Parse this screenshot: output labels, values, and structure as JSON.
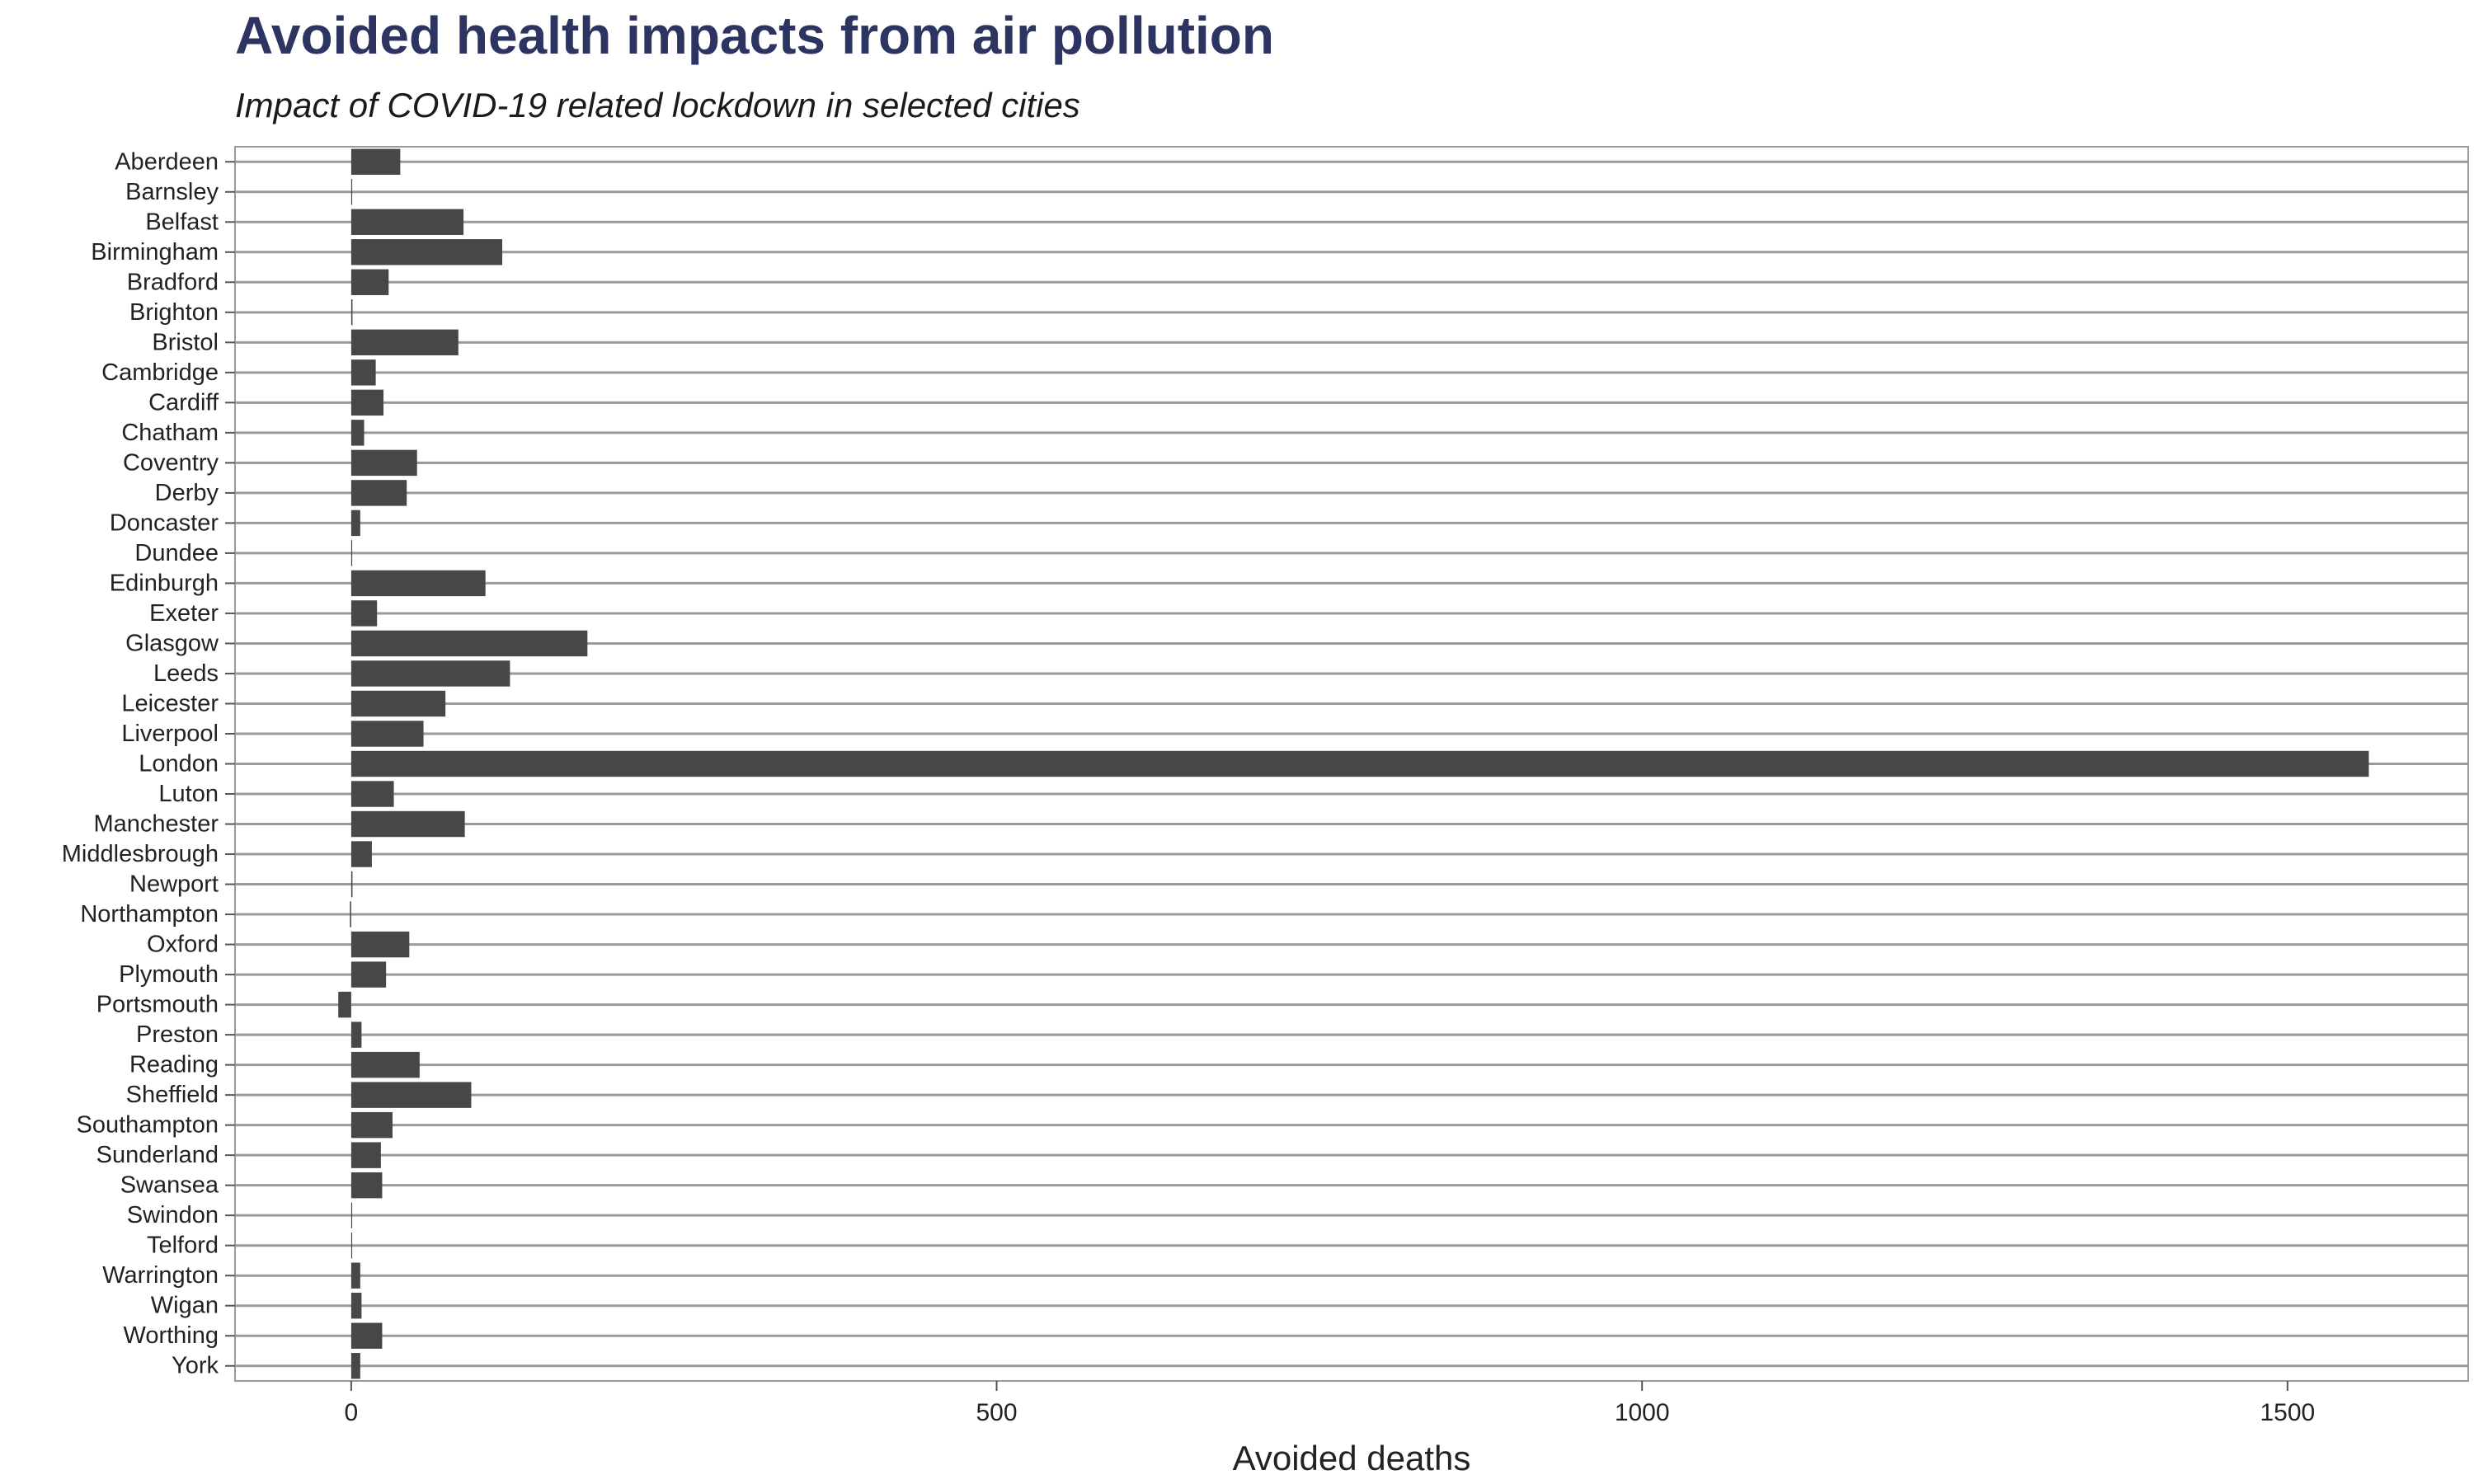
{
  "chart_data": {
    "type": "bar",
    "orientation": "horizontal",
    "title": "Avoided health impacts from air pollution",
    "subtitle": "Impact of COVID-19 related lockdown in selected cities",
    "xlabel": "Avoided deaths",
    "ylabel": "",
    "xlim": [
      -90,
      1640
    ],
    "xticks": [
      0,
      500,
      1000,
      1500
    ],
    "bar_color": "#474747",
    "title_color": "#2d3461",
    "grid": "horizontal lines per category",
    "categories": [
      "Aberdeen",
      "Barnsley",
      "Belfast",
      "Birmingham",
      "Bradford",
      "Brighton",
      "Bristol",
      "Cambridge",
      "Cardiff",
      "Chatham",
      "Coventry",
      "Derby",
      "Doncaster",
      "Dundee",
      "Edinburgh",
      "Exeter",
      "Glasgow",
      "Leeds",
      "Leicester",
      "Liverpool",
      "London",
      "Luton",
      "Manchester",
      "Middlesbrough",
      "Newport",
      "Northampton",
      "Oxford",
      "Plymouth",
      "Portsmouth",
      "Preston",
      "Reading",
      "Sheffield",
      "Southampton",
      "Sunderland",
      "Swansea",
      "Swindon",
      "Telford",
      "Warrington",
      "Wigan",
      "Worthing",
      "York"
    ],
    "values": [
      38,
      0,
      87,
      117,
      29,
      1,
      83,
      19,
      25,
      10,
      51,
      43,
      7,
      0,
      104,
      20,
      183,
      123,
      73,
      56,
      1563,
      33,
      88,
      16,
      1,
      -1,
      45,
      27,
      -10,
      8,
      53,
      93,
      32,
      23,
      24,
      0,
      0,
      7,
      8,
      24,
      7
    ]
  }
}
